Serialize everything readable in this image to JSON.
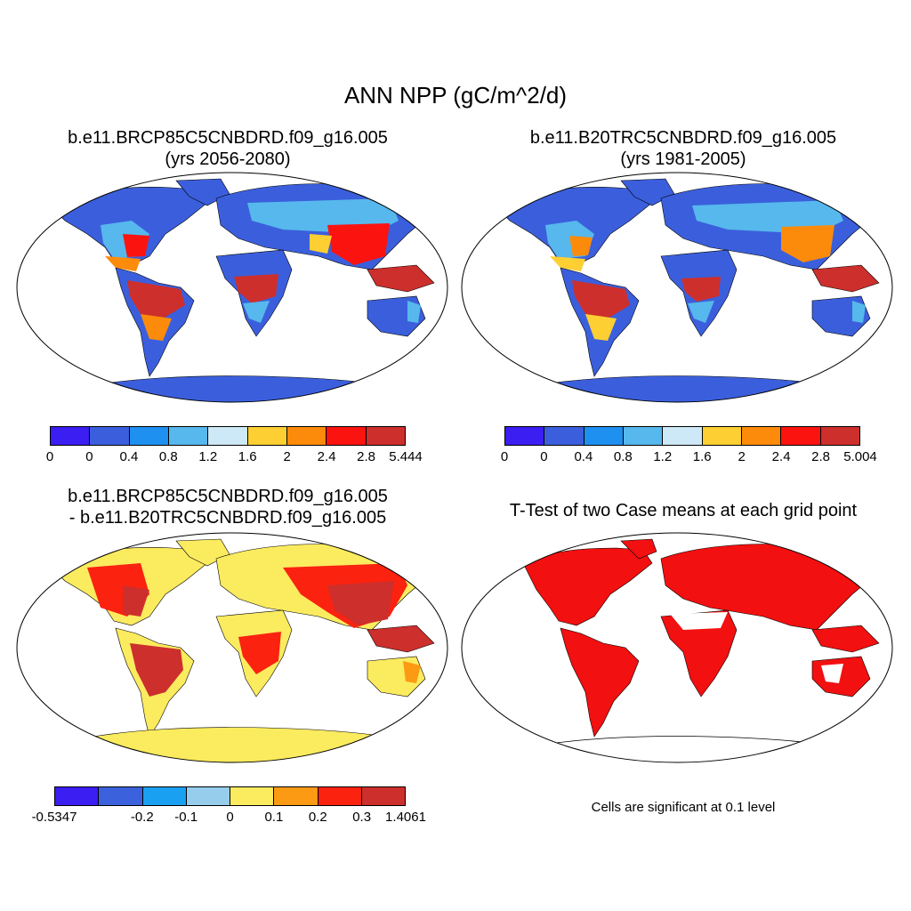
{
  "figure": {
    "title": "ANN NPP (gC/m^2/d)"
  },
  "panels": {
    "case": {
      "title_line1": "b.e11.BRCP85C5CNBDRD.f09_g16.005",
      "title_line2": "(yrs 2056-2080)",
      "colorbar": {
        "colors": [
          "#3a1ef2",
          "#3b5fdc",
          "#1e90f0",
          "#56b8ec",
          "#cde8f6",
          "#fdcf33",
          "#fd8b0b",
          "#fb1310",
          "#cd2f2c"
        ],
        "labels": [
          "0",
          "0",
          "0.4",
          "0.8",
          "1.2",
          "1.6",
          "2",
          "2.4",
          "2.8",
          "5.444"
        ]
      }
    },
    "control": {
      "title_line1": "b.e11.B20TRC5CNBDRD.f09_g16.005",
      "title_line2": "(yrs 1981-2005)",
      "colorbar": {
        "colors": [
          "#3a1ef2",
          "#3b5fdc",
          "#1e90f0",
          "#56b8ec",
          "#cde8f6",
          "#fdcf33",
          "#fd8b0b",
          "#fb1310",
          "#cd2f2c"
        ],
        "labels": [
          "0",
          "0",
          "0.4",
          "0.8",
          "1.2",
          "1.6",
          "2",
          "2.4",
          "2.8",
          "5.004"
        ]
      }
    },
    "difference": {
      "title_line1": "b.e11.BRCP85C5CNBDRD.f09_g16.005",
      "title_line2": "- b.e11.B20TRC5CNBDRD.f09_g16.005",
      "colorbar": {
        "colors": [
          "#3a1ef2",
          "#3b62dc",
          "#1aa0f0",
          "#97cdec",
          "#fbeb5f",
          "#fd9a14",
          "#fb2210",
          "#cd2f2c"
        ],
        "labels": [
          "-0.5347",
          "",
          "-0.2",
          "-0.1",
          "0",
          "0.1",
          "0.2",
          "0.3",
          "1.4061"
        ]
      }
    },
    "ttest": {
      "title": "T-Test of two Case means at each grid point",
      "note": "Cells are significant at 0.1 level",
      "sig_color": "#f21010"
    }
  }
}
